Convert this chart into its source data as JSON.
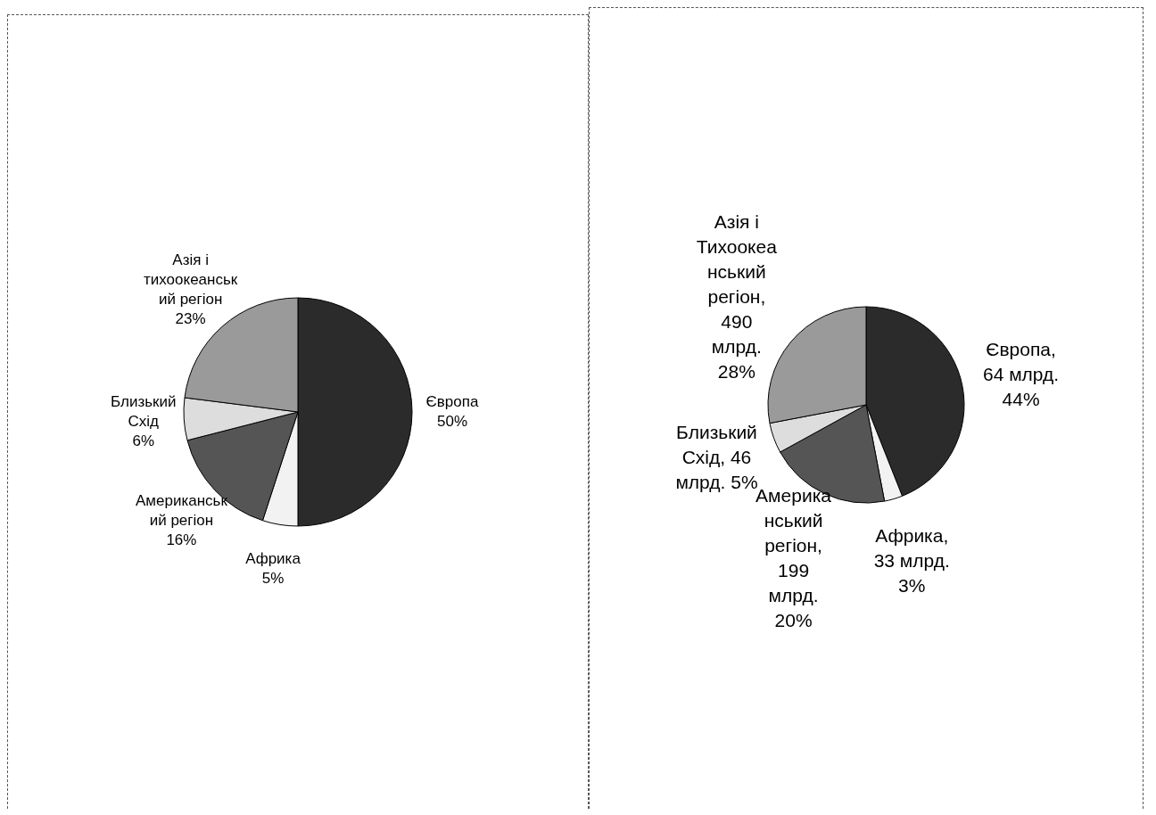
{
  "chart_data": [
    {
      "type": "pie",
      "categories": [
        "Європа",
        "Африка",
        "Американський регіон",
        "Близький Схід",
        "Азія і тихоокеанський регіон"
      ],
      "values": [
        50,
        5,
        16,
        6,
        23
      ],
      "colors": [
        "#2b2b2b",
        "#f2f2f2",
        "#555555",
        "#dddddd",
        "#9a9a9a"
      ],
      "value_labels": [
        "50%",
        "5%",
        "16%",
        "6%",
        "23%"
      ],
      "legend": false
    },
    {
      "type": "pie",
      "categories": [
        "Європа",
        "Африка",
        "Американський регіон",
        "Близький Схід",
        "Азія і Тихоокеанський регіон"
      ],
      "values": [
        44,
        3,
        20,
        5,
        28
      ],
      "colors": [
        "#2b2b2b",
        "#f2f2f2",
        "#555555",
        "#dddddd",
        "#9a9a9a"
      ],
      "value_labels": [
        ", 64 млрд. 44%",
        ", 33 млрд. 3%",
        ", 199 млрд. 20%",
        ", 46 млрд. 5%",
        ", 490 млрд. 28%"
      ],
      "legend": false
    }
  ]
}
